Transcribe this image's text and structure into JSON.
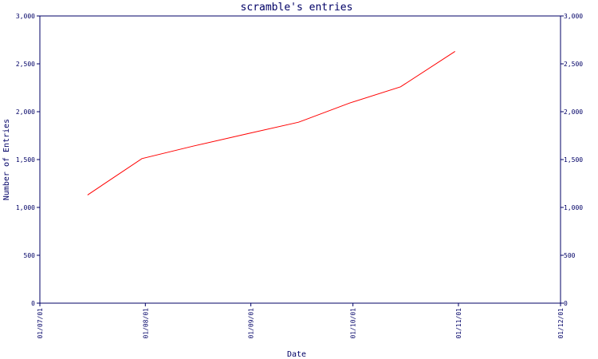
{
  "chart_data": {
    "type": "line",
    "title": "scramble's entries",
    "xlabel": "Date",
    "ylabel": "Number of Entries",
    "x_ticks": [
      "01/07/01",
      "01/08/01",
      "01/09/01",
      "01/10/01",
      "01/11/01",
      "01/12/01"
    ],
    "x_range": [
      "2001-07-01",
      "2001-12-01"
    ],
    "ylim": [
      0,
      3000
    ],
    "y_ticks": [
      0,
      500,
      1000,
      1500,
      2000,
      2500,
      3000
    ],
    "y_tick_labels": [
      "0",
      "500",
      "1,000",
      "1,500",
      "2,000",
      "2,500",
      "3,000"
    ],
    "grid": false,
    "right_axis": true,
    "series": [
      {
        "color": "#ff0000",
        "x": [
          "2001-07-15",
          "2001-07-31",
          "2001-08-15",
          "2001-08-31",
          "2001-09-15",
          "2001-09-30",
          "2001-10-15",
          "2001-10-31"
        ],
        "y": [
          1130,
          1510,
          1640,
          1770,
          1890,
          2090,
          2260,
          2630
        ]
      }
    ]
  },
  "colors": {
    "axis": "#000066",
    "text": "#000066",
    "line": "#ff0000",
    "background": "#ffffff"
  }
}
